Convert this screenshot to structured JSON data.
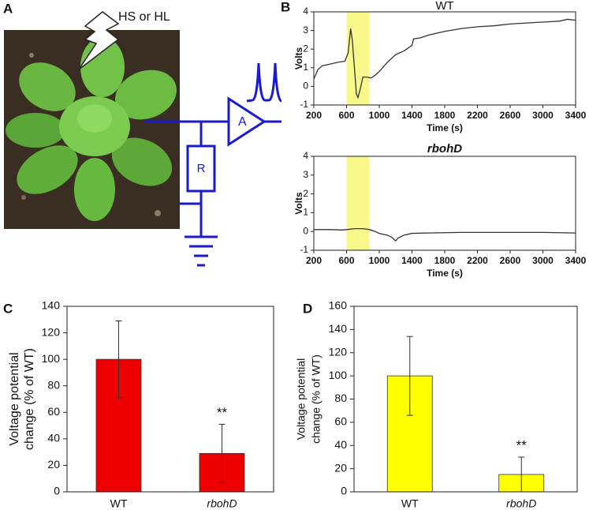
{
  "panel_labels": [
    "A",
    "B",
    "C",
    "D"
  ],
  "diagram": {
    "stimulus": "HS or HL",
    "amplifier": "A",
    "resistor": "R"
  },
  "chart_data": [
    {
      "type": "line",
      "title": "WT",
      "xlabel": "Time (s)",
      "ylabel": "Volts",
      "xlim": [
        200,
        3400
      ],
      "xticks": [
        200,
        600,
        1000,
        1400,
        1800,
        2200,
        2600,
        3000,
        3400
      ],
      "ylim": [
        -1,
        4
      ],
      "yticks": [
        -1,
        0,
        1,
        2,
        3,
        4
      ],
      "highlight": [
        600,
        880
      ],
      "highlight_color": "#f7f78a",
      "series": [
        {
          "name": "WT",
          "color": "#333333",
          "x": [
            200,
            250,
            300,
            400,
            500,
            580,
            620,
            650,
            670,
            700,
            720,
            740,
            770,
            800,
            850,
            900,
            950,
            1000,
            1100,
            1200,
            1300,
            1400,
            1420,
            1500,
            1600,
            1800,
            2000,
            2200,
            2400,
            2600,
            2800,
            3000,
            3200,
            3300,
            3400
          ],
          "values": [
            0.4,
            0.9,
            1.1,
            1.2,
            1.3,
            1.35,
            1.8,
            3.1,
            2.5,
            0.8,
            -0.4,
            -0.6,
            -0.1,
            0.5,
            0.5,
            0.45,
            0.6,
            0.8,
            1.3,
            1.7,
            1.9,
            2.2,
            2.55,
            2.6,
            2.75,
            2.95,
            3.1,
            3.2,
            3.25,
            3.35,
            3.4,
            3.45,
            3.5,
            3.6,
            3.55
          ]
        }
      ]
    },
    {
      "type": "line",
      "title": "rbohD",
      "xlabel": "Time (s)",
      "ylabel": "Volts",
      "xlim": [
        200,
        3400
      ],
      "xticks": [
        200,
        600,
        1000,
        1400,
        1800,
        2200,
        2600,
        3000,
        3400
      ],
      "ylim": [
        -1,
        4
      ],
      "yticks": [
        -1,
        0,
        1,
        2,
        3,
        4
      ],
      "highlight": [
        600,
        880
      ],
      "highlight_color": "#f7f78a",
      "series": [
        {
          "name": "rbohD",
          "color": "#333333",
          "x": [
            200,
            400,
            550,
            600,
            700,
            800,
            880,
            950,
            1000,
            1100,
            1150,
            1200,
            1230,
            1300,
            1400,
            1600,
            2000,
            2500,
            3000,
            3400
          ],
          "values": [
            0.1,
            0.1,
            0.08,
            0.1,
            0.15,
            0.15,
            0.1,
            0,
            -0.1,
            -0.2,
            -0.3,
            -0.5,
            -0.35,
            -0.2,
            -0.1,
            -0.08,
            -0.05,
            -0.05,
            -0.05,
            -0.08
          ]
        }
      ]
    },
    {
      "type": "bar",
      "ylabel": [
        "Voltage potential",
        "change (% of WT)"
      ],
      "categories": [
        "WT",
        "rbohD"
      ],
      "values": [
        100,
        29
      ],
      "errors": [
        29,
        22
      ],
      "markers": [
        null,
        "**"
      ],
      "color": "#ee0000",
      "ylim": [
        0,
        140
      ],
      "yticks": [
        0,
        20,
        40,
        60,
        80,
        100,
        120,
        140
      ]
    },
    {
      "type": "bar",
      "ylabel": [
        "Voltage potential",
        "change (% of WT)"
      ],
      "categories": [
        "WT",
        "rbohD"
      ],
      "values": [
        100,
        15
      ],
      "errors": [
        34,
        15
      ],
      "markers": [
        null,
        "**"
      ],
      "color": "#ffff00",
      "ylim": [
        0,
        160
      ],
      "yticks": [
        0,
        20,
        40,
        60,
        80,
        100,
        120,
        140,
        160
      ]
    }
  ]
}
